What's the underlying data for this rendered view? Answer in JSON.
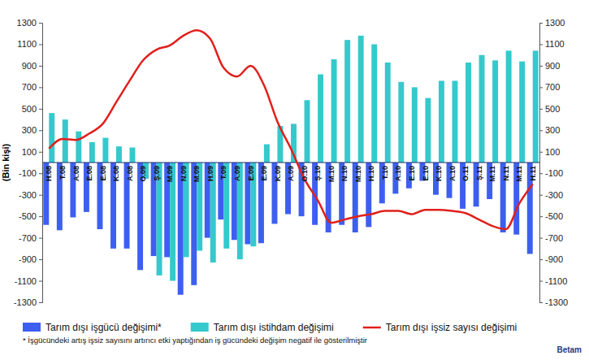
{
  "chart_data": {
    "type": "bar",
    "y_label": "(Bin kişi)",
    "categories": [
      "H.08",
      "T.08",
      "A.08",
      "E.08",
      "E.08",
      "K.08",
      "A.08",
      "O.09",
      "Ş.09",
      "M.09",
      "N.09",
      "M.09",
      "H.09",
      "T.09",
      "A.09",
      "E.09",
      "E.09",
      "K.09",
      "A.09",
      "O.10",
      "Ş.10",
      "M.10",
      "N.10",
      "M.10",
      "H.10",
      "T.10",
      "A.10",
      "E.10",
      "E.10",
      "K.10",
      "A.10",
      "O.11",
      "Ş.11",
      "M.11",
      "N.11",
      "M.11",
      "H.11"
    ],
    "series": [
      {
        "name": "Tarım dışı işgücü değişimi*",
        "type": "bar",
        "color": "#3d5ff0",
        "values": [
          -580,
          -630,
          -510,
          -460,
          -620,
          -800,
          -800,
          -1000,
          -870,
          -880,
          -1230,
          -1140,
          -700,
          -530,
          -720,
          -760,
          -750,
          -570,
          -480,
          -500,
          -580,
          -650,
          -580,
          -650,
          -600,
          -380,
          -290,
          -240,
          -170,
          -300,
          -330,
          -430,
          -410,
          -340,
          -650,
          -670,
          -850
        ]
      },
      {
        "name": "Tarım dışı istihdam değişimi",
        "type": "bar",
        "color": "#35c9cc",
        "values": [
          460,
          400,
          290,
          190,
          230,
          150,
          140,
          -150,
          -1050,
          -1100,
          -880,
          -820,
          -930,
          -800,
          -900,
          -780,
          170,
          340,
          360,
          580,
          820,
          960,
          1140,
          1180,
          1100,
          930,
          750,
          700,
          600,
          760,
          760,
          930,
          1000,
          950,
          1040,
          940,
          1040
        ]
      },
      {
        "name": "Tarım dışı işsiz sayısı değişimi",
        "type": "line",
        "color": "#e0201c",
        "axis": "y2",
        "values": [
          130,
          220,
          210,
          270,
          360,
          560,
          760,
          950,
          1050,
          1090,
          1180,
          1230,
          1150,
          880,
          800,
          900,
          720,
          380,
          130,
          -150,
          -350,
          -560,
          -530,
          -500,
          -480,
          -450,
          -450,
          -480,
          -440,
          -440,
          -450,
          -470,
          -530,
          -590,
          -620,
          -380,
          -200
        ]
      }
    ],
    "ylim": [
      -1300,
      1300
    ],
    "yticks": [
      1300,
      1100,
      900,
      700,
      500,
      300,
      100,
      -100,
      -300,
      -500,
      -700,
      -900,
      -1100,
      -1300
    ],
    "y2lim": [
      -1300,
      1300
    ],
    "y2ticks": [
      1300,
      1100,
      900,
      700,
      500,
      300,
      100,
      -100,
      -300,
      -500,
      -700,
      -900,
      -1100,
      -1300
    ],
    "grid": false,
    "legend": "bottom",
    "annotations": [
      "* İşgücündeki artış işsiz sayısını artırıcı etki yaptığından iş gücündeki değişim negatif ile gösterilmiştir",
      "Betam"
    ]
  }
}
